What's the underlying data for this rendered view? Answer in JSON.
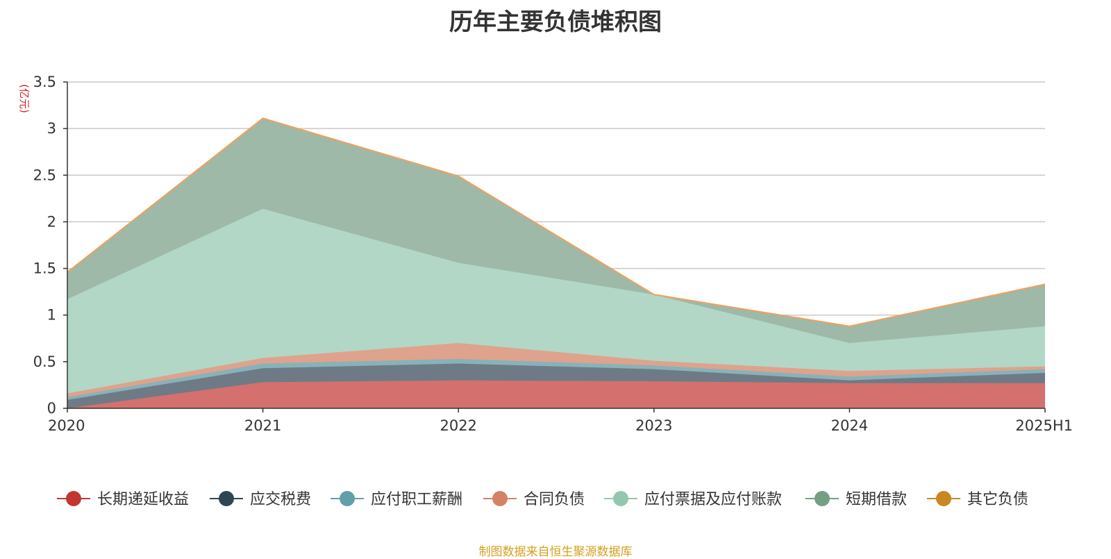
{
  "title": "历年主要负债堆积图",
  "source_note": "制图数据来自恒生聚源数据库",
  "chart_data": {
    "type": "area",
    "stacked": true,
    "title": "历年主要负债堆积图",
    "ylabel": "(亿元)",
    "xlabel": "",
    "categories": [
      "2020",
      "2021",
      "2022",
      "2023",
      "2024",
      "2025H1"
    ],
    "ylim": [
      0,
      3.5
    ],
    "yticks": [
      0,
      0.5,
      1,
      1.5,
      2,
      2.5,
      3,
      3.5
    ],
    "ytick_labels": [
      "0",
      "0.5",
      "1",
      "1.5",
      "2",
      "2.5",
      "3",
      "3.5"
    ],
    "grid": true,
    "legend_position": "bottom",
    "series": [
      {
        "name": "长期递延收益",
        "color": "#c23531",
        "fill": "#d4706d",
        "values": [
          0.0,
          0.28,
          0.3,
          0.29,
          0.27,
          0.27
        ]
      },
      {
        "name": "应交税费",
        "color": "#2f4554",
        "fill": "#6e7b86",
        "values": [
          0.09,
          0.15,
          0.18,
          0.13,
          0.03,
          0.11
        ]
      },
      {
        "name": "应付职工薪酬",
        "color": "#61a0a8",
        "fill": "#88b2b9",
        "values": [
          0.03,
          0.05,
          0.05,
          0.04,
          0.04,
          0.04
        ]
      },
      {
        "name": "合同负债",
        "color": "#d48265",
        "fill": "#dfa28c",
        "values": [
          0.04,
          0.06,
          0.17,
          0.05,
          0.06,
          0.03
        ]
      },
      {
        "name": "应付票据及应付账款",
        "color": "#91c7ae",
        "fill": "#b2d7c6",
        "values": [
          1.01,
          1.6,
          0.86,
          0.71,
          0.3,
          0.43
        ]
      },
      {
        "name": "短期借款",
        "color": "#749f83",
        "fill": "#9eb9a7",
        "values": [
          0.29,
          0.97,
          0.93,
          0.0,
          0.18,
          0.45
        ]
      },
      {
        "name": "其它负债",
        "color": "#ca8622",
        "fill": "#f0a060",
        "values": [
          0.0,
          0.0,
          0.0,
          0.0,
          0.0,
          0.0
        ]
      }
    ]
  }
}
